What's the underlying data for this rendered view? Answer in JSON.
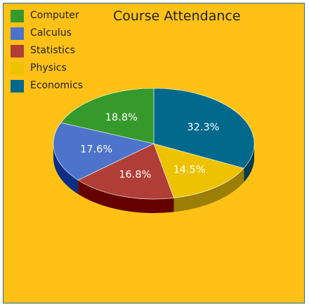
{
  "chart_data": {
    "type": "pie",
    "title": "Course Attendance",
    "legend_position": "top-left",
    "three_d": true,
    "slices": [
      {
        "label": "Economics",
        "value": 32.3,
        "display": "32.3%",
        "color": "#01698b",
        "side_color": "#003a50"
      },
      {
        "label": "Physics",
        "value": 14.5,
        "display": "14.5%",
        "color": "#edc301",
        "side_color": "#9a7e05"
      },
      {
        "label": "Statistics",
        "value": 16.8,
        "display": "16.8%",
        "color": "#b03e36",
        "side_color": "#650000"
      },
      {
        "label": "Calculus",
        "value": 17.6,
        "display": "17.6%",
        "color": "#4d74ca",
        "side_color": "#0e2d84"
      },
      {
        "label": "Computer",
        "value": 18.8,
        "display": "18.8%",
        "color": "#359a2b",
        "side_color": "#1b5a14"
      }
    ],
    "legend": [
      {
        "label": "Computer",
        "color": "#359a2b"
      },
      {
        "label": "Calculus",
        "color": "#4d74ca"
      },
      {
        "label": "Statistics",
        "color": "#b03e36"
      },
      {
        "label": "Physics",
        "color": "#edc301"
      },
      {
        "label": "Economics",
        "color": "#01698b"
      }
    ]
  },
  "colors": {
    "background": "#ffc116",
    "border": "#2b6f8c"
  }
}
